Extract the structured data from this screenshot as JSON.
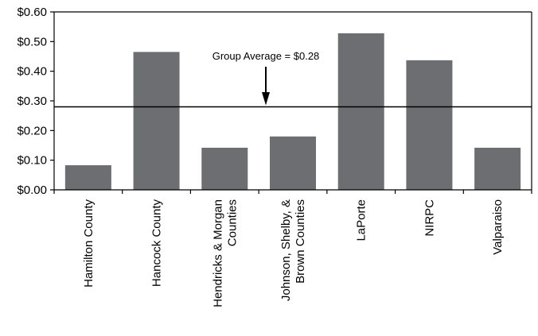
{
  "chart_data": {
    "type": "bar",
    "title": "",
    "xlabel": "",
    "ylabel": "",
    "ylim": [
      0,
      0.6
    ],
    "ytick_values": [
      0,
      0.1,
      0.2,
      0.3,
      0.4,
      0.5,
      0.6
    ],
    "ytick_labels": [
      "$0.00",
      "$0.10",
      "$0.20",
      "$0.30",
      "$0.40",
      "$0.50",
      "$0.60"
    ],
    "grid": false,
    "categories": [
      [
        "Hamilton County"
      ],
      [
        "Hancock County"
      ],
      [
        "Hendricks & Morgan",
        "Counties"
      ],
      [
        "Johnson, Shelby, &",
        "Brown Counties"
      ],
      [
        "LaPorte"
      ],
      [
        "NIRPC"
      ],
      [
        "Valparaiso"
      ]
    ],
    "values": [
      0.083,
      0.465,
      0.142,
      0.18,
      0.528,
      0.437,
      0.142
    ],
    "bar_color": "#6d6e71",
    "reference_line": {
      "value": 0.28,
      "label": "Group Average = $0.28"
    }
  }
}
